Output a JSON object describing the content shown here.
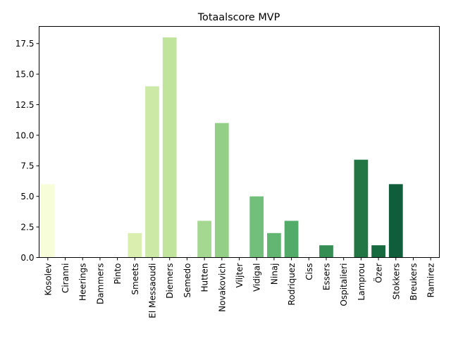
{
  "chart_data": {
    "type": "bar",
    "title": "Totaalscore MVP",
    "xlabel": "",
    "ylabel": "",
    "ylim": [
      0,
      18.9
    ],
    "yticks": [
      0.0,
      2.5,
      5.0,
      7.5,
      10.0,
      12.5,
      15.0,
      17.5
    ],
    "ytick_labels": [
      "0.0",
      "2.5",
      "5.0",
      "7.5",
      "10.0",
      "12.5",
      "15.0",
      "17.5"
    ],
    "grid": false,
    "categories": [
      "Kosolev",
      "Ciranni",
      "Heerings",
      "Dammers",
      "Pinto",
      "Smeets",
      "El Messaoudi",
      "Diemers",
      "Semedo",
      "Hutten",
      "Novakovich",
      "Viljter",
      "Vidigal",
      "Ninaj",
      "Rodriquez",
      "Ciss",
      "Essers",
      "Ospitalieri",
      "Lamprou",
      "Özer",
      "Stokkers",
      "Breukers",
      "Ramirez"
    ],
    "values": [
      6,
      0,
      0,
      0,
      0,
      2,
      14,
      18,
      0,
      3,
      11,
      0,
      5,
      2,
      3,
      0,
      1,
      0,
      8,
      1,
      6,
      0,
      0
    ],
    "colors": [
      "#f7fcd9",
      "#f4fad2",
      "#eff8ca",
      "#eaf6c2",
      "#e3f3b8",
      "#d9eeaf",
      "#cde9a6",
      "#c1e49c",
      "#b3de95",
      "#a4d78f",
      "#94cf88",
      "#83c882",
      "#72bf7b",
      "#62b672",
      "#52ab68",
      "#429d5e",
      "#358f54",
      "#2a824c",
      "#217644",
      "#17693f",
      "#0f5d3b",
      "#075236",
      "#004529"
    ]
  }
}
